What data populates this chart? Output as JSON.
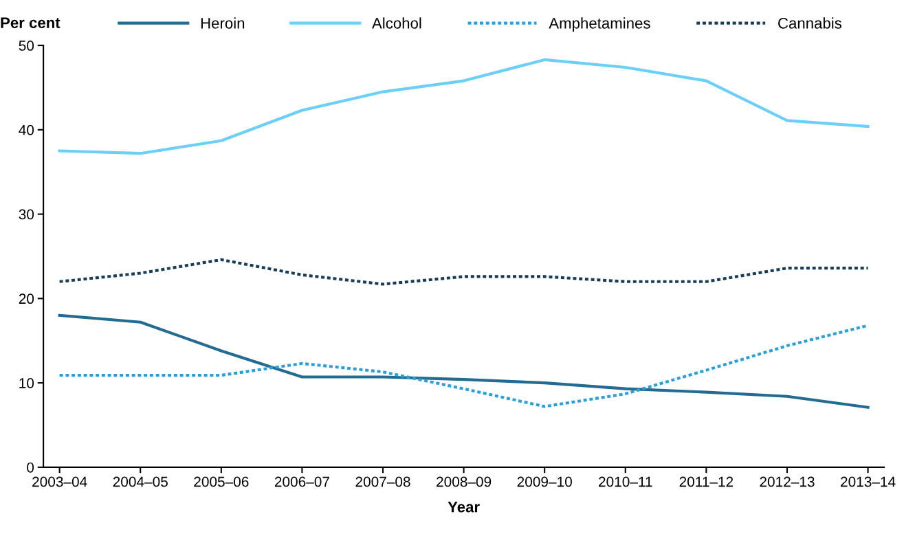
{
  "chart_data": {
    "type": "line",
    "ylabel": "Per cent",
    "xlabel": "Year",
    "categories": [
      "2003–04",
      "2004–05",
      "2005–06",
      "2006–07",
      "2007–08",
      "2008–09",
      "2009–10",
      "2010–11",
      "2011–12",
      "2012–13",
      "2013–14"
    ],
    "series": [
      {
        "name": "Heroin",
        "color": "#236b91",
        "line_style": "solid",
        "values": [
          18.0,
          17.2,
          13.8,
          10.7,
          10.7,
          10.4,
          10.0,
          9.3,
          8.9,
          8.4,
          7.1
        ]
      },
      {
        "name": "Alcohol",
        "color": "#6ccff6",
        "line_style": "solid",
        "values": [
          37.5,
          37.2,
          38.7,
          42.3,
          44.5,
          45.8,
          48.3,
          47.4,
          45.8,
          41.1,
          40.4
        ]
      },
      {
        "name": "Amphetamines",
        "color": "#2a9fd8",
        "line_style": "dotted",
        "values": [
          10.9,
          10.9,
          10.9,
          12.3,
          11.3,
          9.3,
          7.2,
          8.7,
          11.5,
          14.4,
          16.8
        ]
      },
      {
        "name": "Cannabis",
        "color": "#1a3d57",
        "line_style": "dotted",
        "values": [
          22.0,
          23.0,
          24.6,
          22.8,
          21.7,
          22.6,
          22.6,
          22.0,
          22.0,
          23.6,
          23.6
        ]
      }
    ],
    "ylim": [
      0,
      50
    ],
    "yticks": [
      0,
      10,
      20,
      30,
      40,
      50
    ],
    "grid": false,
    "legend": "top",
    "marker": "none"
  }
}
